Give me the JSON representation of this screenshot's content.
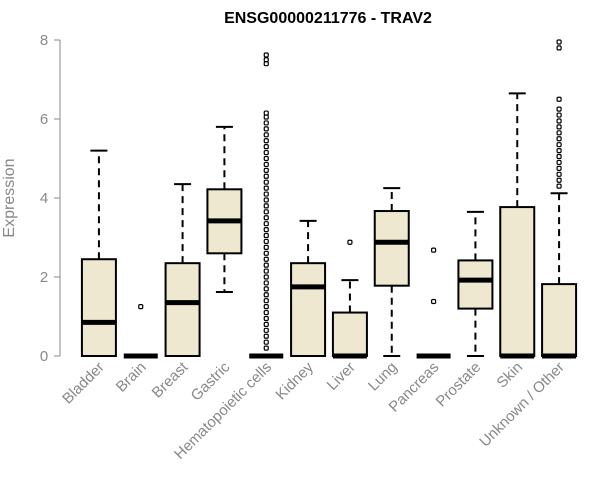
{
  "chart_data": {
    "type": "boxplot",
    "title": "ENSG00000211776 - TRAV2",
    "xlabel": "",
    "ylabel": "Expression",
    "ylim": [
      0,
      8
    ],
    "yticks": [
      0,
      2,
      4,
      6,
      8
    ],
    "box_fill": "#EEE8D1",
    "line_color": "#000000",
    "axis_color": "#888888",
    "categories": [
      "Bladder",
      "Brain",
      "Breast",
      "Gastric",
      "Hematopoietic cells",
      "Kidney",
      "Liver",
      "Lung",
      "Pancreas",
      "Prostate",
      "Skin",
      "Unknown / Other"
    ],
    "series": [
      {
        "name": "Bladder",
        "min": 0,
        "q1": 0,
        "median": 0.85,
        "q3": 2.45,
        "max": 5.2,
        "outliers": []
      },
      {
        "name": "Brain",
        "min": 0,
        "q1": 0,
        "median": 0,
        "q3": 0,
        "max": 0,
        "outliers": [
          1.25
        ]
      },
      {
        "name": "Breast",
        "min": 0,
        "q1": 0,
        "median": 1.35,
        "q3": 2.35,
        "max": 4.35,
        "outliers": []
      },
      {
        "name": "Gastric",
        "min": 1.62,
        "q1": 2.6,
        "median": 3.42,
        "q3": 4.22,
        "max": 5.8,
        "outliers": []
      },
      {
        "name": "Hematopoietic cells",
        "min": 0,
        "q1": 0,
        "median": 0,
        "q3": 0,
        "max": 0,
        "outliers": [
          0.2,
          0.35,
          0.5,
          0.65,
          0.8,
          0.95,
          1.1,
          1.25,
          1.4,
          1.55,
          1.7,
          1.85,
          2.0,
          2.15,
          2.3,
          2.45,
          2.6,
          2.75,
          2.9,
          3.05,
          3.2,
          3.35,
          3.5,
          3.65,
          3.8,
          3.95,
          4.1,
          4.25,
          4.4,
          4.55,
          4.7,
          4.85,
          5.0,
          5.15,
          5.3,
          5.45,
          5.6,
          5.75,
          5.9,
          6.05,
          6.15,
          7.4,
          7.5,
          7.62
        ]
      },
      {
        "name": "Kidney",
        "min": 0,
        "q1": 0,
        "median": 1.75,
        "q3": 2.35,
        "max": 3.42,
        "outliers": []
      },
      {
        "name": "Liver",
        "min": 0,
        "q1": 0,
        "median": 0,
        "q3": 1.1,
        "max": 1.92,
        "outliers": [
          2.88
        ]
      },
      {
        "name": "Lung",
        "min": 0,
        "q1": 1.78,
        "median": 2.88,
        "q3": 3.67,
        "max": 4.25,
        "outliers": []
      },
      {
        "name": "Pancreas",
        "min": 0,
        "q1": 0,
        "median": 0,
        "q3": 0,
        "max": 0,
        "outliers": [
          1.38,
          2.68
        ]
      },
      {
        "name": "Prostate",
        "min": 0,
        "q1": 1.2,
        "median": 1.92,
        "q3": 2.42,
        "max": 3.65,
        "outliers": []
      },
      {
        "name": "Skin",
        "min": 0,
        "q1": 0,
        "median": 0,
        "q3": 3.77,
        "max": 6.65,
        "outliers": []
      },
      {
        "name": "Unknown / Other",
        "min": 0,
        "q1": 0,
        "median": 0,
        "q3": 1.82,
        "max": 4.12,
        "outliers": [
          4.3,
          4.45,
          4.6,
          4.75,
          4.9,
          5.05,
          5.2,
          5.35,
          5.5,
          5.65,
          5.8,
          5.95,
          6.1,
          6.25,
          6.5,
          7.8,
          7.95
        ]
      }
    ]
  }
}
